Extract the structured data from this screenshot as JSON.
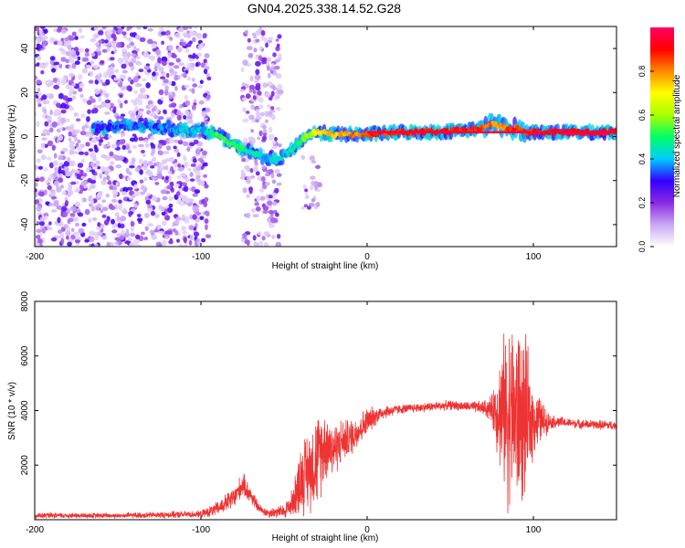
{
  "title": "GN04.2025.338.14.52.G28",
  "chart_data": [
    {
      "type": "heatmap",
      "name": "spectrogram",
      "xlabel": "Height of straight line (km)",
      "ylabel": "Frequency (Hz)",
      "xlim": [
        -200,
        150
      ],
      "ylim": [
        -50,
        50
      ],
      "xticks": [
        -200,
        -100,
        0,
        100
      ],
      "yticks": [
        -40,
        -20,
        0,
        20,
        40
      ],
      "colorbar": {
        "label": "Normalized spectral amplitude",
        "ticks": [
          0.0,
          0.2,
          0.4,
          0.6,
          0.8
        ],
        "colors": [
          "#ffffff",
          "#c9a8f5",
          "#8a2be2",
          "#3300ff",
          "#00ccff",
          "#00ff66",
          "#aaff00",
          "#ffff00",
          "#ff8800",
          "#ff0000",
          "#ff0066"
        ]
      },
      "ridge": {
        "x": [
          -200,
          -160,
          -140,
          -120,
          -110,
          -100,
          -90,
          -80,
          -70,
          -60,
          -55,
          -50,
          -45,
          -40,
          -35,
          -30,
          -20,
          -10,
          0,
          20,
          40,
          60,
          70,
          75,
          80,
          85,
          90,
          95,
          100,
          120,
          150
        ],
        "y": [
          4,
          4,
          5,
          4,
          3,
          3,
          1,
          -4,
          -7,
          -10,
          -11,
          -9,
          -6,
          -2,
          1,
          2,
          1,
          1,
          1,
          2,
          2,
          3,
          4,
          6,
          5,
          3,
          4,
          2,
          2,
          2,
          2
        ],
        "amp": [
          0.25,
          0.3,
          0.35,
          0.35,
          0.4,
          0.4,
          0.5,
          0.5,
          0.45,
          0.4,
          0.45,
          0.4,
          0.45,
          0.5,
          0.6,
          0.7,
          0.75,
          0.8,
          0.85,
          0.9,
          0.9,
          0.9,
          0.85,
          0.8,
          0.8,
          0.85,
          0.85,
          0.9,
          0.9,
          0.95,
          0.95
        ]
      }
    },
    {
      "type": "line",
      "name": "snr",
      "xlabel": "Height of straight line (km)",
      "ylabel": "SNR (10 * v/v)",
      "xlim": [
        -200,
        150
      ],
      "ylim": [
        0,
        8000
      ],
      "xticks": [
        -200,
        -100,
        0,
        100
      ],
      "yticks": [
        2000,
        4000,
        6000,
        8000
      ],
      "color": "#ee3333",
      "envelope": {
        "x": [
          -200,
          -150,
          -100,
          -90,
          -80,
          -75,
          -70,
          -65,
          -60,
          -50,
          -45,
          -40,
          -30,
          -25,
          -20,
          -15,
          -10,
          -5,
          0,
          5,
          10,
          20,
          30,
          40,
          50,
          60,
          70,
          75,
          80,
          85,
          90,
          95,
          100,
          110,
          120,
          130,
          150
        ],
        "base": [
          150,
          150,
          200,
          400,
          800,
          1300,
          900,
          400,
          250,
          300,
          600,
          1500,
          2200,
          2800,
          2600,
          2900,
          3000,
          3300,
          3600,
          3800,
          3950,
          4050,
          4100,
          4150,
          4200,
          4150,
          4100,
          4050,
          4000,
          3900,
          3800,
          3700,
          3650,
          3600,
          3550,
          3500,
          3450
        ],
        "spread": [
          120,
          120,
          150,
          300,
          500,
          500,
          400,
          200,
          200,
          300,
          600,
          1500,
          2000,
          1500,
          1200,
          900,
          800,
          700,
          600,
          400,
          300,
          200,
          200,
          200,
          200,
          200,
          300,
          600,
          2500,
          4000,
          4000,
          3500,
          1500,
          300,
          200,
          200,
          200
        ]
      }
    }
  ]
}
